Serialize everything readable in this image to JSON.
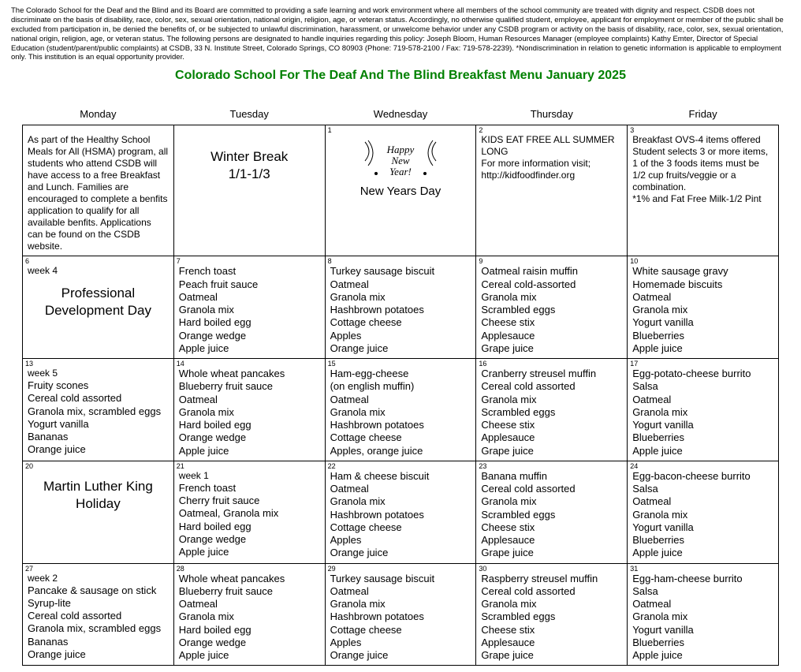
{
  "disclaimer": "The Colorado School for the Deaf and the Blind and its Board are committed to providing a safe learning and work environment where all members of the school community are treated with dignity and respect. CSDB does not discriminate on the basis of disability, race, color, sex, sexual orientation, national origin, religion, age, or veteran status. Accordingly, no otherwise qualified student, employee, applicant for employment or member of the public shall be excluded from participation in, be denied the benefits of, or be subjected to unlawful discrimination, harassment, or unwelcome behavior under any CSDB program or activity on the basis of disability, race, color, sex, sexual orientation, national origin, religion, age, or veteran status. The following persons are designated to handle inquiries regarding this policy:  Joseph Bloom, Human Resources Manager (employee complaints) Kathy Emter, Director of Special Education (student/parent/public complaints) at CSDB, 33 N. Institute Street, Colorado Springs, CO 80903 (Phone:  719-578-2100 / Fax: 719-578-2239). *Nondiscrimination in relation to genetic information is applicable to employment only. This institution is an equal opportunity provider.",
  "title": "Colorado School For The Deaf And The Blind Breakfast Menu January 2025",
  "headers": [
    "Monday",
    "Tuesday",
    "Wednesday",
    "Thursday",
    "Friday"
  ],
  "rows": [
    [
      {
        "num": "",
        "lines": [
          "As part of the Healthy School Meals for All (HSMA) program, all students who attend CSDB will have access to a free Breakfast and Lunch. Families are encouraged to complete a benfits application to qualify for all available benfits. Applications can be found on the CSDB website."
        ],
        "cls": "small"
      },
      {
        "num": "",
        "big": "Winter Break\n1/1-1/3"
      },
      {
        "num": "1",
        "nyd": true,
        "nyd_label": "New Years Day"
      },
      {
        "num": "2",
        "lines": [
          "KIDS EAT FREE ALL SUMMER LONG",
          "For more information visit;",
          "http://kidfoodfinder.org"
        ],
        "cls": "small"
      },
      {
        "num": "3",
        "lines": [
          "Breakfast OVS-4 items offered",
          "Student selects 3 or more items, 1 of the 3 foods items must be 1/2 cup fruits/veggie or a combination.",
          "*1% and Fat Free Milk-1/2 Pint"
        ],
        "cls": "small"
      }
    ],
    [
      {
        "num": "6",
        "week": "week 4",
        "big2": "Professional\nDevelopment Day"
      },
      {
        "num": "7",
        "lines": [
          "French toast",
          "Peach fruit sauce",
          "Oatmeal",
          "Granola mix",
          "Hard boiled egg",
          "Orange wedge",
          "Apple juice"
        ]
      },
      {
        "num": "8",
        "lines": [
          "Turkey sausage biscuit",
          "Oatmeal",
          "Granola mix",
          "Hashbrown potatoes",
          "Cottage cheese",
          "Apples",
          "Orange juice"
        ]
      },
      {
        "num": "9",
        "lines": [
          "Oatmeal raisin muffin",
          "Cereal cold-assorted",
          "Granola mix",
          "Scrambled eggs",
          "Cheese stix",
          "Applesauce",
          "Grape juice"
        ]
      },
      {
        "num": "10",
        "lines": [
          "White sausage gravy",
          "Homemade biscuits",
          "Oatmeal",
          "Granola mix",
          "Yogurt vanilla",
          "Blueberries",
          "Apple juice"
        ]
      }
    ],
    [
      {
        "num": "13",
        "week": "week 5",
        "lines": [
          "Fruity scones",
          "Cereal cold assorted",
          "Granola mix, scrambled eggs",
          "Yogurt vanilla",
          "Bananas",
          "Orange juice"
        ]
      },
      {
        "num": "14",
        "lines": [
          "Whole wheat pancakes",
          "Blueberry fruit sauce",
          "Oatmeal",
          "Granola mix",
          "Hard boiled egg",
          "Orange wedge",
          "Apple juice"
        ]
      },
      {
        "num": "15",
        "lines": [
          "Ham-egg-cheese",
          "(on english muffin)",
          "Oatmeal",
          "Granola mix",
          "Hashbrown potatoes",
          "Cottage cheese",
          "Apples, orange juice"
        ]
      },
      {
        "num": "16",
        "lines": [
          "Cranberry streusel muffin",
          "Cereal cold assorted",
          "Granola mix",
          "Scrambled eggs",
          "Cheese stix",
          "Applesauce",
          "Grape juice"
        ]
      },
      {
        "num": "17",
        "lines": [
          "Egg-potato-cheese burrito",
          "Salsa",
          "Oatmeal",
          "Granola mix",
          "Yogurt vanilla",
          "Blueberries",
          "Apple juice"
        ]
      }
    ],
    [
      {
        "num": "20",
        "big2": "Martin Luther King\nHoliday"
      },
      {
        "num": "21",
        "week": "week 1",
        "lines": [
          "French toast",
          "Cherry fruit sauce",
          "Oatmeal, Granola mix",
          "Hard boiled egg",
          "Orange wedge",
          "Apple juice"
        ]
      },
      {
        "num": "22",
        "lines": [
          "Ham & cheese biscuit",
          "Oatmeal",
          "Granola mix",
          "Hashbrown potatoes",
          "Cottage cheese",
          "Apples",
          "Orange juice"
        ]
      },
      {
        "num": "23",
        "lines": [
          "Banana muffin",
          "Cereal cold assorted",
          "Granola mix",
          "Scrambled eggs",
          "Cheese stix",
          "Applesauce",
          "Grape juice"
        ]
      },
      {
        "num": "24",
        "lines": [
          "Egg-bacon-cheese burrito",
          "Salsa",
          "Oatmeal",
          "Granola mix",
          "Yogurt vanilla",
          "Blueberries",
          "Apple juice"
        ]
      }
    ],
    [
      {
        "num": "27",
        "week": "week 2",
        "lines": [
          "Pancake & sausage on stick",
          "Syrup-lite",
          "Cereal cold assorted",
          "Granola mix, scrambled eggs",
          "Bananas",
          "Orange juice"
        ]
      },
      {
        "num": "28",
        "lines": [
          "Whole wheat pancakes",
          "Blueberry fruit sauce",
          "Oatmeal",
          "Granola mix",
          "Hard boiled egg",
          "Orange wedge",
          "Apple juice"
        ]
      },
      {
        "num": "29",
        "lines": [
          "Turkey sausage biscuit",
          "Oatmeal",
          "Granola mix",
          "Hashbrown potatoes",
          "Cottage cheese",
          "Apples",
          "Orange juice"
        ]
      },
      {
        "num": "30",
        "lines": [
          "Raspberry streusel muffin",
          "Cereal cold assorted",
          "Granola mix",
          "Scrambled eggs",
          "Cheese stix",
          "Applesauce",
          "Grape juice"
        ]
      },
      {
        "num": "31",
        "lines": [
          "Egg-ham-cheese burrito",
          "Salsa",
          "Oatmeal",
          "Granola mix",
          "Yogurt vanilla",
          "Blueberries",
          "Apple juice"
        ]
      }
    ]
  ]
}
